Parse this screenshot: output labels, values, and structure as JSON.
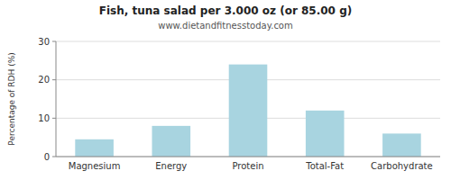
{
  "chart_data": {
    "type": "bar",
    "title": "Fish, tuna salad per 3.000 oz (or 85.00 g)",
    "subtitle": "www.dietandfitnesstoday.com",
    "categories": [
      "Magnesium",
      "Energy",
      "Protein",
      "Total-Fat",
      "Carbohydrate"
    ],
    "values": [
      4.5,
      8.0,
      24.0,
      12.0,
      6.0
    ],
    "color": "#a8d4e0",
    "ylabel": "Percentage of RDH (%)",
    "ylim": [
      0,
      30
    ],
    "yticks": [
      0,
      10,
      20,
      30
    ],
    "grid": true
  }
}
